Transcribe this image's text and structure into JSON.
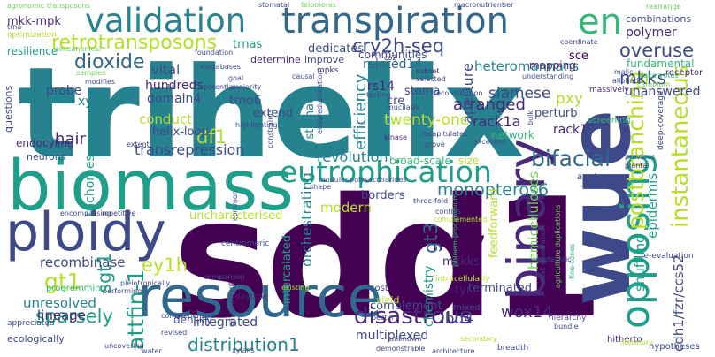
{
  "colors": {
    "background": "#ffffff",
    "palette": [
      "#440154",
      "#482878",
      "#3e4989",
      "#31688e",
      "#26828e",
      "#1f9e89",
      "#35b779",
      "#6ece58",
      "#b5de2b",
      "#fde725"
    ]
  },
  "words": [
    {
      "text": "trihelix",
      "c": "#26828e"
    },
    {
      "text": "sdd1",
      "c": "#440154"
    },
    {
      "text": "biomass",
      "c": "#1f9e89"
    },
    {
      "text": "wue",
      "c": "#3e4989"
    },
    {
      "text": "resource",
      "c": "#31688e"
    },
    {
      "text": "ploidy",
      "c": "#3e4989"
    },
    {
      "text": "binary",
      "c": "#482878"
    },
    {
      "text": "transpiration",
      "c": "#31688e"
    },
    {
      "text": "validation",
      "c": "#26828e"
    },
    {
      "text": "eutrophication",
      "c": "#1f9e89"
    },
    {
      "text": "en",
      "c": "#35b779"
    },
    {
      "text": "opposing",
      "c": "#1f9e89"
    },
    {
      "text": "postbranching",
      "c": "#b5de2b"
    },
    {
      "text": "instantaneous",
      "c": "#b5de2b"
    },
    {
      "text": "retrotransposons",
      "c": "#b5de2b"
    },
    {
      "text": "cry2h-seq",
      "c": "#3e4989"
    },
    {
      "text": "gt1",
      "c": "#b5de2b"
    },
    {
      "text": "dioxide",
      "c": "#31688e"
    },
    {
      "text": "overuse",
      "c": "#3e4989"
    },
    {
      "text": "mkks",
      "c": "#3e4989"
    },
    {
      "text": "mkk7",
      "c": "#440154"
    },
    {
      "text": "gt3",
      "c": "#31688e"
    },
    {
      "text": "monopteros6",
      "c": "#26828e"
    },
    {
      "text": "bifacial",
      "c": "#31688e"
    },
    {
      "text": "revolution",
      "c": "#26828e"
    },
    {
      "text": "disastrous",
      "c": "#482878"
    },
    {
      "text": "distribution1",
      "c": "#26828e"
    },
    {
      "text": "sparsely",
      "c": "#1f9e89"
    },
    {
      "text": "attfin-1",
      "c": "#1f9e89"
    },
    {
      "text": "ey1h",
      "c": "#b5de2b"
    },
    {
      "text": "sgt1",
      "c": "#1f9e89"
    },
    {
      "text": "recombinase",
      "c": "#3e4989"
    },
    {
      "text": "unresolved",
      "c": "#26828e"
    },
    {
      "text": "lineage",
      "c": "#482878"
    },
    {
      "text": "transrepression",
      "c": "#3e4989"
    },
    {
      "text": "df1",
      "c": "#b5de2b"
    },
    {
      "text": "twenty-one",
      "c": "#b5de2b"
    },
    {
      "text": "efficiency",
      "c": "#26828e"
    },
    {
      "text": "arranged",
      "c": "#482878"
    },
    {
      "text": "siamese",
      "c": "#3e4989"
    },
    {
      "text": "rack1a",
      "c": "#482878"
    },
    {
      "text": "pxy",
      "c": "#b5de2b"
    },
    {
      "text": "heteromannans",
      "c": "#26828e"
    },
    {
      "text": "unanswered",
      "c": "#3e4989"
    },
    {
      "text": "mkk-mpk",
      "c": "#482878"
    },
    {
      "text": "hair",
      "c": "#482878"
    },
    {
      "text": "probe",
      "c": "#3e4989"
    },
    {
      "text": "xylem",
      "c": "#26828e"
    },
    {
      "text": "domain4",
      "c": "#3e4989"
    },
    {
      "text": "conduct",
      "c": "#b5de2b"
    },
    {
      "text": "tmo6",
      "c": "#3e4989"
    },
    {
      "text": "hundreds",
      "c": "#482878"
    },
    {
      "text": "vital",
      "c": "#3e4989"
    },
    {
      "text": "related14",
      "c": "#31688e"
    },
    {
      "text": "communities",
      "c": "#3e4989"
    },
    {
      "text": "dedicates",
      "c": "#3e4989"
    },
    {
      "text": "rs14",
      "c": "#482878"
    },
    {
      "text": "cre",
      "c": "#3e4989"
    },
    {
      "text": "sce",
      "c": "#440154"
    },
    {
      "text": "trnas",
      "c": "#1f9e89"
    },
    {
      "text": "trichomes",
      "c": "#1f9e89"
    },
    {
      "text": "shuffling",
      "c": "#1f9e89"
    },
    {
      "text": "epidermis",
      "c": "#1f9e89"
    },
    {
      "text": "hemicelluloses",
      "c": "#6ece58"
    },
    {
      "text": "orchestrating",
      "c": "#26828e"
    },
    {
      "text": "uncharacterised",
      "c": "#b5de2b"
    },
    {
      "text": "modern",
      "c": "#b5de2b"
    },
    {
      "text": "mkkks",
      "c": "#482878"
    },
    {
      "text": "tyr",
      "c": "#482878"
    },
    {
      "text": "feedforward",
      "c": "#b5de2b"
    },
    {
      "text": "terminated",
      "c": "#3e4989"
    },
    {
      "text": "chemistry",
      "c": "#1f9e89"
    },
    {
      "text": "lbd4",
      "c": "#3e4989"
    },
    {
      "text": "wox14",
      "c": "#482878"
    },
    {
      "text": "cdh1/fzr/ccs52",
      "c": "#3e4989"
    },
    {
      "text": "fundamental",
      "c": "#35b779"
    },
    {
      "text": "polymer",
      "c": "#482878"
    },
    {
      "text": "mapping",
      "c": "#482878"
    },
    {
      "text": "perturb",
      "c": "#3e4989"
    },
    {
      "text": "network",
      "c": "#35b779"
    },
    {
      "text": "rack1",
      "c": "#482878"
    },
    {
      "text": "complement",
      "c": "#3e4989"
    },
    {
      "text": "integrated",
      "c": "#3e4989"
    },
    {
      "text": "multiplexed",
      "c": "#3e4989"
    },
    {
      "text": "density",
      "c": "#3e4989"
    },
    {
      "text": "intercalated",
      "c": "#1f9e89"
    },
    {
      "text": "borders",
      "c": "#3e4989"
    },
    {
      "text": "size",
      "c": "#b5de2b"
    },
    {
      "text": "broad-scale",
      "c": "#35b779"
    },
    {
      "text": "endocyling",
      "c": "#482878"
    },
    {
      "text": "helix-loop",
      "c": "#3e4989"
    },
    {
      "text": "stoma",
      "c": "#3e4989"
    },
    {
      "text": "systematic",
      "c": "#26828e"
    },
    {
      "text": "agronomic transposons",
      "c": "#6ece58"
    },
    {
      "text": "stomatal",
      "c": "#3e4989"
    },
    {
      "text": "telomeres",
      "c": "#6ece58"
    },
    {
      "text": "macronutrient",
      "c": "#3e4989"
    },
    {
      "text": "combinations",
      "c": "#3e4989"
    },
    {
      "text": "rearrange",
      "c": "#6ece58"
    },
    {
      "text": "resilience",
      "c": "#1f9e89"
    },
    {
      "text": "noncanonical",
      "c": "#6ece58"
    },
    {
      "text": "foundation",
      "c": "#3e4989"
    },
    {
      "text": "determine",
      "c": "#482878"
    },
    {
      "text": "improve",
      "c": "#3e4989"
    },
    {
      "text": "megabases",
      "c": "#3e4989"
    },
    {
      "text": "mpks",
      "c": "#482878"
    },
    {
      "text": "causal",
      "c": "#3e4989"
    },
    {
      "text": "subset",
      "c": "#482878"
    },
    {
      "text": "understanding",
      "c": "#3e4989"
    },
    {
      "text": "coordinate",
      "c": "#3e4989"
    },
    {
      "text": "eukaryotes",
      "c": "#35b779"
    },
    {
      "text": "receptor",
      "c": "#482878"
    },
    {
      "text": "malic",
      "c": "#3e4989"
    },
    {
      "text": "aliphatic",
      "c": "#3e4989"
    },
    {
      "text": "cambium",
      "c": "#6ece58"
    },
    {
      "text": "massively",
      "c": "#482878"
    },
    {
      "text": "recapitulates",
      "c": "#3e4989"
    },
    {
      "text": "kinase",
      "c": "#482878"
    },
    {
      "text": "prove",
      "c": "#3e4989"
    },
    {
      "text": "screening",
      "c": "#35b779"
    },
    {
      "text": "previous",
      "c": "#3e4989"
    },
    {
      "text": "planta",
      "c": "#482878"
    },
    {
      "text": "deep-coverage",
      "c": "#3e4989"
    },
    {
      "text": "apc/c",
      "c": "#3e4989"
    },
    {
      "text": "three-fold",
      "c": "#3e4989"
    },
    {
      "text": "polysaccharides",
      "c": "#3e4989"
    },
    {
      "text": "modules",
      "c": "#3e4989"
    },
    {
      "text": "contigs",
      "c": "#3e4989"
    },
    {
      "text": "complemented",
      "c": "#b5de2b"
    },
    {
      "text": "re-evaluation",
      "c": "#3e4989"
    },
    {
      "text": "fine-tunes",
      "c": "#35b779"
    },
    {
      "text": "next-generation",
      "c": "#3e4989"
    },
    {
      "text": "metabolic",
      "c": "#3e4989"
    },
    {
      "text": "agriculture duplications",
      "c": "#6ece58"
    },
    {
      "text": "mixed",
      "c": "#3e4989"
    },
    {
      "text": "hierarchy",
      "c": "#3e4989"
    },
    {
      "text": "hitherto",
      "c": "#482878"
    },
    {
      "text": "bundle",
      "c": "#3e4989"
    },
    {
      "text": "literature",
      "c": "#b5de2b"
    },
    {
      "text": "hypotheses",
      "c": "#3e4989"
    },
    {
      "text": "breadth",
      "c": "#3e4989"
    },
    {
      "text": "secondary",
      "c": "#b5de2b"
    },
    {
      "text": "pectin",
      "c": "#3e4989"
    },
    {
      "text": "yield",
      "c": "#b5de2b"
    },
    {
      "text": "cost",
      "c": "#3e4989"
    },
    {
      "text": "existing",
      "c": "#b5de2b"
    },
    {
      "text": "daytime",
      "c": "#482878"
    },
    {
      "text": "comparison",
      "c": "#3e4989"
    },
    {
      "text": "revised",
      "c": "#3e4989"
    },
    {
      "text": "water",
      "c": "#3e4989"
    },
    {
      "text": "environment",
      "c": "#3e4989"
    },
    {
      "text": "comprehensive",
      "c": "#3e4989"
    },
    {
      "text": "pleiotropically",
      "c": "#3e4989"
    },
    {
      "text": "performing",
      "c": "#3e4989"
    },
    {
      "text": "programming",
      "c": "#35b779"
    },
    {
      "text": "appreciated",
      "c": "#3e4989"
    },
    {
      "text": "ecologically",
      "c": "#3e4989"
    },
    {
      "text": "xylans",
      "c": "#3e4989"
    },
    {
      "text": "uncovering",
      "c": "#3e4989"
    },
    {
      "text": "centromeric",
      "c": "#3e4989"
    },
    {
      "text": "unknown",
      "c": "#3e4989"
    },
    {
      "text": "demonstrable",
      "c": "#3e4989"
    },
    {
      "text": "architecture",
      "c": "#3e4989"
    },
    {
      "text": "phloem-procambium",
      "c": "#35b779"
    },
    {
      "text": "intracellularly",
      "c": "#b5de2b"
    },
    {
      "text": "shape",
      "c": "#3e4989"
    },
    {
      "text": "common",
      "c": "#3e4989"
    },
    {
      "text": "encompassing",
      "c": "#3e4989"
    },
    {
      "text": "repetitive",
      "c": "#3e4989"
    },
    {
      "text": "neurons",
      "c": "#3e4989"
    },
    {
      "text": "extent",
      "c": "#3e4989"
    },
    {
      "text": "questions",
      "c": "#3e4989"
    },
    {
      "text": "optimization",
      "c": "#b5de2b"
    },
    {
      "text": "trna",
      "c": "#3e4989"
    },
    {
      "text": "samples",
      "c": "#6ece58"
    },
    {
      "text": "modifies",
      "c": "#3e4989"
    },
    {
      "text": "extend",
      "c": "#3e4989"
    },
    {
      "text": "1a",
      "c": "#3e4989"
    },
    {
      "text": "potential",
      "c": "#3e4989"
    },
    {
      "text": "goal",
      "c": "#3e4989"
    },
    {
      "text": "majority",
      "c": "#3e4989"
    },
    {
      "text": "highlighting",
      "c": "#3e4989"
    },
    {
      "text": "constraints",
      "c": "#3e4989"
    },
    {
      "text": "endoreduplication",
      "c": "#3e4989"
    },
    {
      "text": "testing",
      "c": "#3e4989"
    },
    {
      "text": "mucilage",
      "c": "#3e4989"
    },
    {
      "text": "selected",
      "c": "#3e4989"
    },
    {
      "text": "reconstitution",
      "c": "#3e4989"
    },
    {
      "text": "excellent",
      "c": "#3e4989"
    },
    {
      "text": "aperture",
      "c": "#3e4989"
    },
    {
      "text": "co2",
      "c": "#482878"
    },
    {
      "text": "bulk",
      "c": "#3e4989"
    },
    {
      "text": "ser",
      "c": "#3e4989"
    },
    {
      "text": "ectopic stomatal",
      "c": "#35b779"
    }
  ]
}
